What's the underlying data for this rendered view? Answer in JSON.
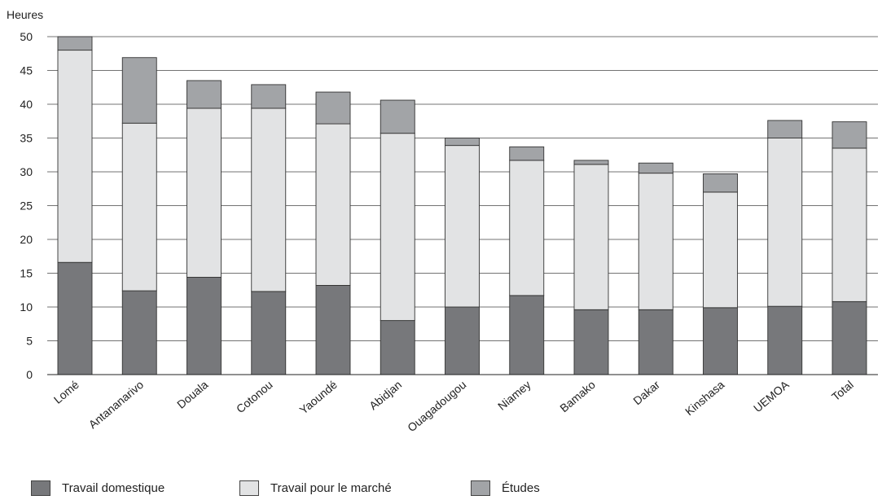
{
  "chart_data": {
    "type": "bar",
    "stacked": true,
    "ylabel": "Heures",
    "ylim": [
      0,
      50
    ],
    "yticks": [
      0,
      5,
      10,
      15,
      20,
      25,
      30,
      35,
      40,
      45,
      50
    ],
    "grid": true,
    "legend_position": "bottom",
    "categories": [
      "Lomé",
      "Antananarivo",
      "Douala",
      "Cotonou",
      "Yaoundé",
      "Abidjan",
      "Ouagadougou",
      "Niamey",
      "Bamako",
      "Dakar",
      "Kinshasa",
      "UEMOA",
      "Total"
    ],
    "series": [
      {
        "name": "Travail domestique",
        "color": "#77787b",
        "values": [
          16.6,
          12.4,
          14.4,
          12.3,
          13.2,
          8.0,
          10.0,
          11.7,
          9.6,
          9.6,
          9.9,
          10.1,
          10.8
        ]
      },
      {
        "name": "Travail pour le marché",
        "color": "#e2e3e4",
        "values": [
          31.4,
          24.8,
          25.0,
          27.1,
          23.9,
          27.7,
          23.9,
          20.0,
          21.5,
          20.2,
          17.1,
          24.9,
          22.7
        ]
      },
      {
        "name": "Études",
        "color": "#a2a4a7",
        "values": [
          2.0,
          9.7,
          4.1,
          3.5,
          4.7,
          4.9,
          1.1,
          2.0,
          0.6,
          1.5,
          2.7,
          2.6,
          3.9
        ]
      }
    ]
  }
}
